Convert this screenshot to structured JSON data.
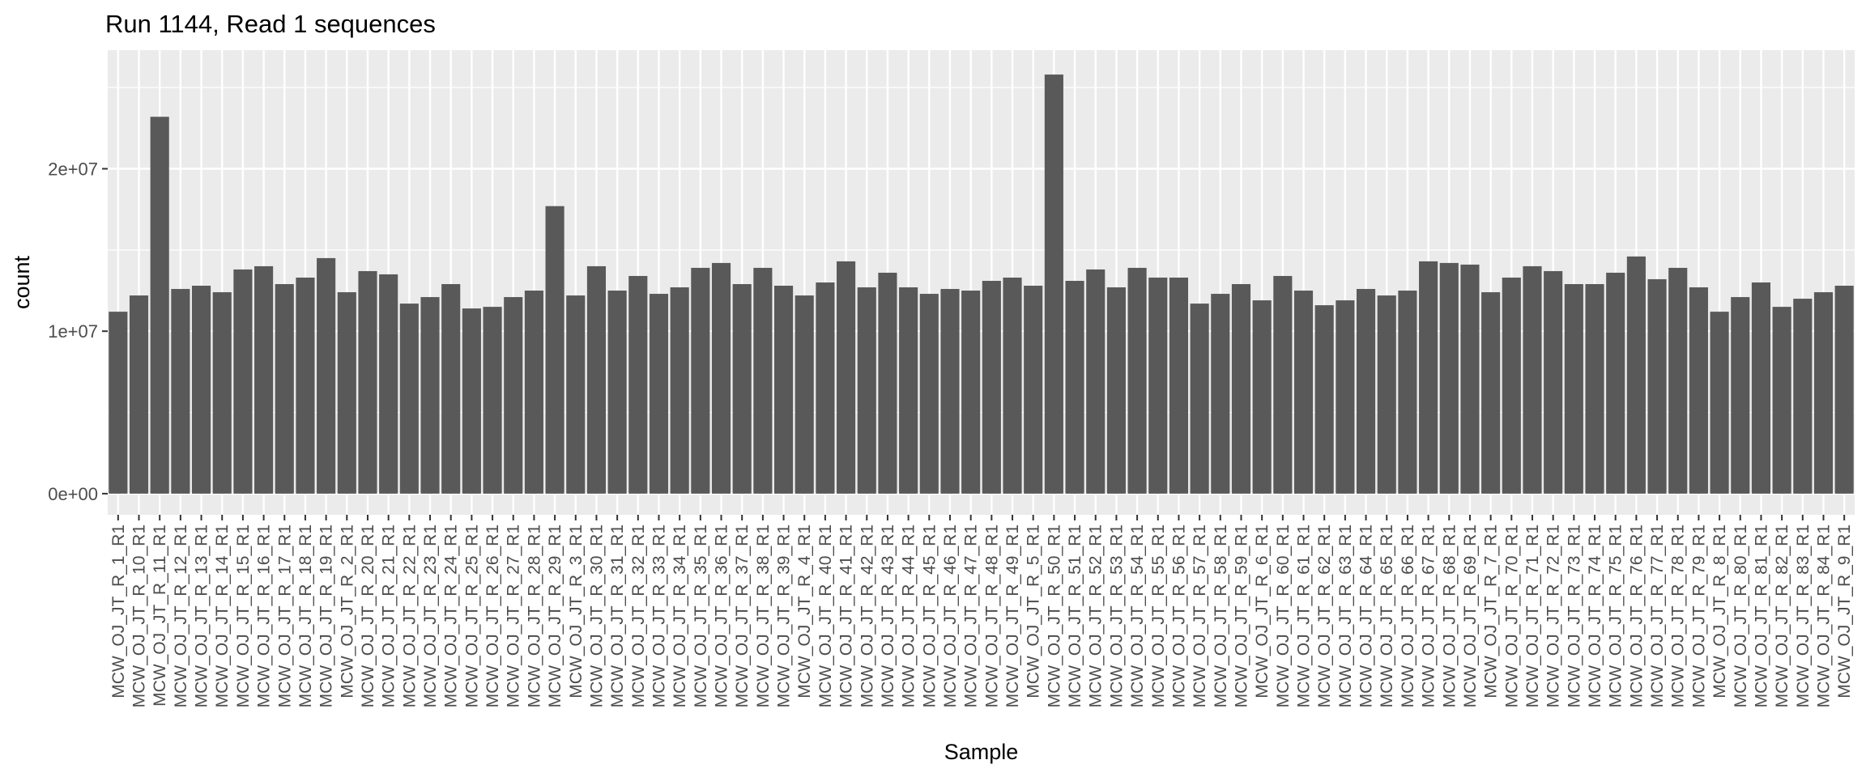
{
  "chart_data": {
    "type": "bar",
    "title": "Run 1144, Read 1 sequences",
    "xlabel": "Sample",
    "ylabel": "count",
    "ylim": [
      -1300000,
      27300000
    ],
    "yticks": [
      0,
      10000000,
      20000000
    ],
    "ytick_labels": [
      "0e+00",
      "1e+07",
      "2e+07"
    ],
    "grid": true,
    "colors": {
      "bar": "#595959",
      "panel": "#ebebeb",
      "grid": "#ffffff",
      "tick": "#333333",
      "text": "#4d4d4d"
    },
    "categories": [
      "MCW_OJ_JT_R_1_R1",
      "MCW_OJ_JT_R_10_R1",
      "MCW_OJ_JT_R_11_R1",
      "MCW_OJ_JT_R_12_R1",
      "MCW_OJ_JT_R_13_R1",
      "MCW_OJ_JT_R_14_R1",
      "MCW_OJ_JT_R_15_R1",
      "MCW_OJ_JT_R_16_R1",
      "MCW_OJ_JT_R_17_R1",
      "MCW_OJ_JT_R_18_R1",
      "MCW_OJ_JT_R_19_R1",
      "MCW_OJ_JT_R_2_R1",
      "MCW_OJ_JT_R_20_R1",
      "MCW_OJ_JT_R_21_R1",
      "MCW_OJ_JT_R_22_R1",
      "MCW_OJ_JT_R_23_R1",
      "MCW_OJ_JT_R_24_R1",
      "MCW_OJ_JT_R_25_R1",
      "MCW_OJ_JT_R_26_R1",
      "MCW_OJ_JT_R_27_R1",
      "MCW_OJ_JT_R_28_R1",
      "MCW_OJ_JT_R_29_R1",
      "MCW_OJ_JT_R_3_R1",
      "MCW_OJ_JT_R_30_R1",
      "MCW_OJ_JT_R_31_R1",
      "MCW_OJ_JT_R_32_R1",
      "MCW_OJ_JT_R_33_R1",
      "MCW_OJ_JT_R_34_R1",
      "MCW_OJ_JT_R_35_R1",
      "MCW_OJ_JT_R_36_R1",
      "MCW_OJ_JT_R_37_R1",
      "MCW_OJ_JT_R_38_R1",
      "MCW_OJ_JT_R_39_R1",
      "MCW_OJ_JT_R_4_R1",
      "MCW_OJ_JT_R_40_R1",
      "MCW_OJ_JT_R_41_R1",
      "MCW_OJ_JT_R_42_R1",
      "MCW_OJ_JT_R_43_R1",
      "MCW_OJ_JT_R_44_R1",
      "MCW_OJ_JT_R_45_R1",
      "MCW_OJ_JT_R_46_R1",
      "MCW_OJ_JT_R_47_R1",
      "MCW_OJ_JT_R_48_R1",
      "MCW_OJ_JT_R_49_R1",
      "MCW_OJ_JT_R_5_R1",
      "MCW_OJ_JT_R_50_R1",
      "MCW_OJ_JT_R_51_R1",
      "MCW_OJ_JT_R_52_R1",
      "MCW_OJ_JT_R_53_R1",
      "MCW_OJ_JT_R_54_R1",
      "MCW_OJ_JT_R_55_R1",
      "MCW_OJ_JT_R_56_R1",
      "MCW_OJ_JT_R_57_R1",
      "MCW_OJ_JT_R_58_R1",
      "MCW_OJ_JT_R_59_R1",
      "MCW_OJ_JT_R_6_R1",
      "MCW_OJ_JT_R_60_R1",
      "MCW_OJ_JT_R_61_R1",
      "MCW_OJ_JT_R_62_R1",
      "MCW_OJ_JT_R_63_R1",
      "MCW_OJ_JT_R_64_R1",
      "MCW_OJ_JT_R_65_R1",
      "MCW_OJ_JT_R_66_R1",
      "MCW_OJ_JT_R_67_R1",
      "MCW_OJ_JT_R_68_R1",
      "MCW_OJ_JT_R_69_R1",
      "MCW_OJ_JT_R_7_R1",
      "MCW_OJ_JT_R_70_R1",
      "MCW_OJ_JT_R_71_R1",
      "MCW_OJ_JT_R_72_R1",
      "MCW_OJ_JT_R_73_R1",
      "MCW_OJ_JT_R_74_R1",
      "MCW_OJ_JT_R_75_R1",
      "MCW_OJ_JT_R_76_R1",
      "MCW_OJ_JT_R_77_R1",
      "MCW_OJ_JT_R_78_R1",
      "MCW_OJ_JT_R_79_R1",
      "MCW_OJ_JT_R_8_R1",
      "MCW_OJ_JT_R_80_R1",
      "MCW_OJ_JT_R_81_R1",
      "MCW_OJ_JT_R_82_R1",
      "MCW_OJ_JT_R_83_R1",
      "MCW_OJ_JT_R_84_R1",
      "MCW_OJ_JT_R_9_R1"
    ],
    "values": [
      11200000,
      12200000,
      23200000,
      12600000,
      12800000,
      12400000,
      13800000,
      14000000,
      12900000,
      13300000,
      14500000,
      12400000,
      13700000,
      13500000,
      11700000,
      12100000,
      12900000,
      11400000,
      11500000,
      12100000,
      12500000,
      17700000,
      12200000,
      14000000,
      12500000,
      13400000,
      12300000,
      12700000,
      13900000,
      14200000,
      12900000,
      13900000,
      12800000,
      12200000,
      13000000,
      14300000,
      12700000,
      13600000,
      12700000,
      12300000,
      12600000,
      12500000,
      13100000,
      13300000,
      12800000,
      25800000,
      13100000,
      13800000,
      12700000,
      13900000,
      13300000,
      13300000,
      11700000,
      12300000,
      12900000,
      11900000,
      13400000,
      12500000,
      11600000,
      11900000,
      12600000,
      12200000,
      12500000,
      14300000,
      14200000,
      14100000,
      12400000,
      13300000,
      14000000,
      13700000,
      12900000,
      12900000,
      13600000,
      14600000,
      13200000,
      13900000,
      12700000,
      11200000,
      12100000,
      13000000,
      11500000,
      12000000,
      12400000,
      12800000
    ]
  }
}
